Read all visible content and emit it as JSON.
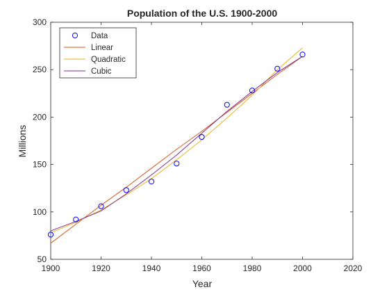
{
  "chart_data": {
    "type": "line",
    "title": "Population of the U.S. 1900-2000",
    "xlabel": "Year",
    "ylabel": "Millions",
    "xlim": [
      1900,
      2020
    ],
    "ylim": [
      50,
      300
    ],
    "xticks": [
      1900,
      1920,
      1940,
      1960,
      1980,
      2000,
      2020
    ],
    "yticks": [
      50,
      100,
      150,
      200,
      250,
      300
    ],
    "grid": false,
    "legend_position": "top-left",
    "x": [
      1900,
      1910,
      1920,
      1930,
      1940,
      1950,
      1960,
      1970,
      1980,
      1990,
      2000
    ],
    "series": [
      {
        "name": "Data",
        "style": "markers",
        "color": "#0000ff",
        "values": [
          76,
          92,
          106,
          123,
          132,
          151,
          179,
          213,
          228,
          251,
          266
        ]
      },
      {
        "name": "Linear",
        "style": "line",
        "color": "#d95319",
        "values": [
          67,
          87,
          107,
          126,
          146,
          166,
          185,
          205,
          225,
          245,
          264
        ]
      },
      {
        "name": "Quadratic",
        "style": "line",
        "color": "#edb120",
        "values": [
          78,
          89,
          102,
          118,
          135,
          155,
          176,
          199,
          223,
          250,
          273
        ]
      },
      {
        "name": "Cubic",
        "style": "line",
        "color": "#7e2f8e",
        "values": [
          80,
          90,
          101,
          119,
          139,
          160,
          183,
          206,
          227,
          247,
          264
        ]
      }
    ]
  }
}
